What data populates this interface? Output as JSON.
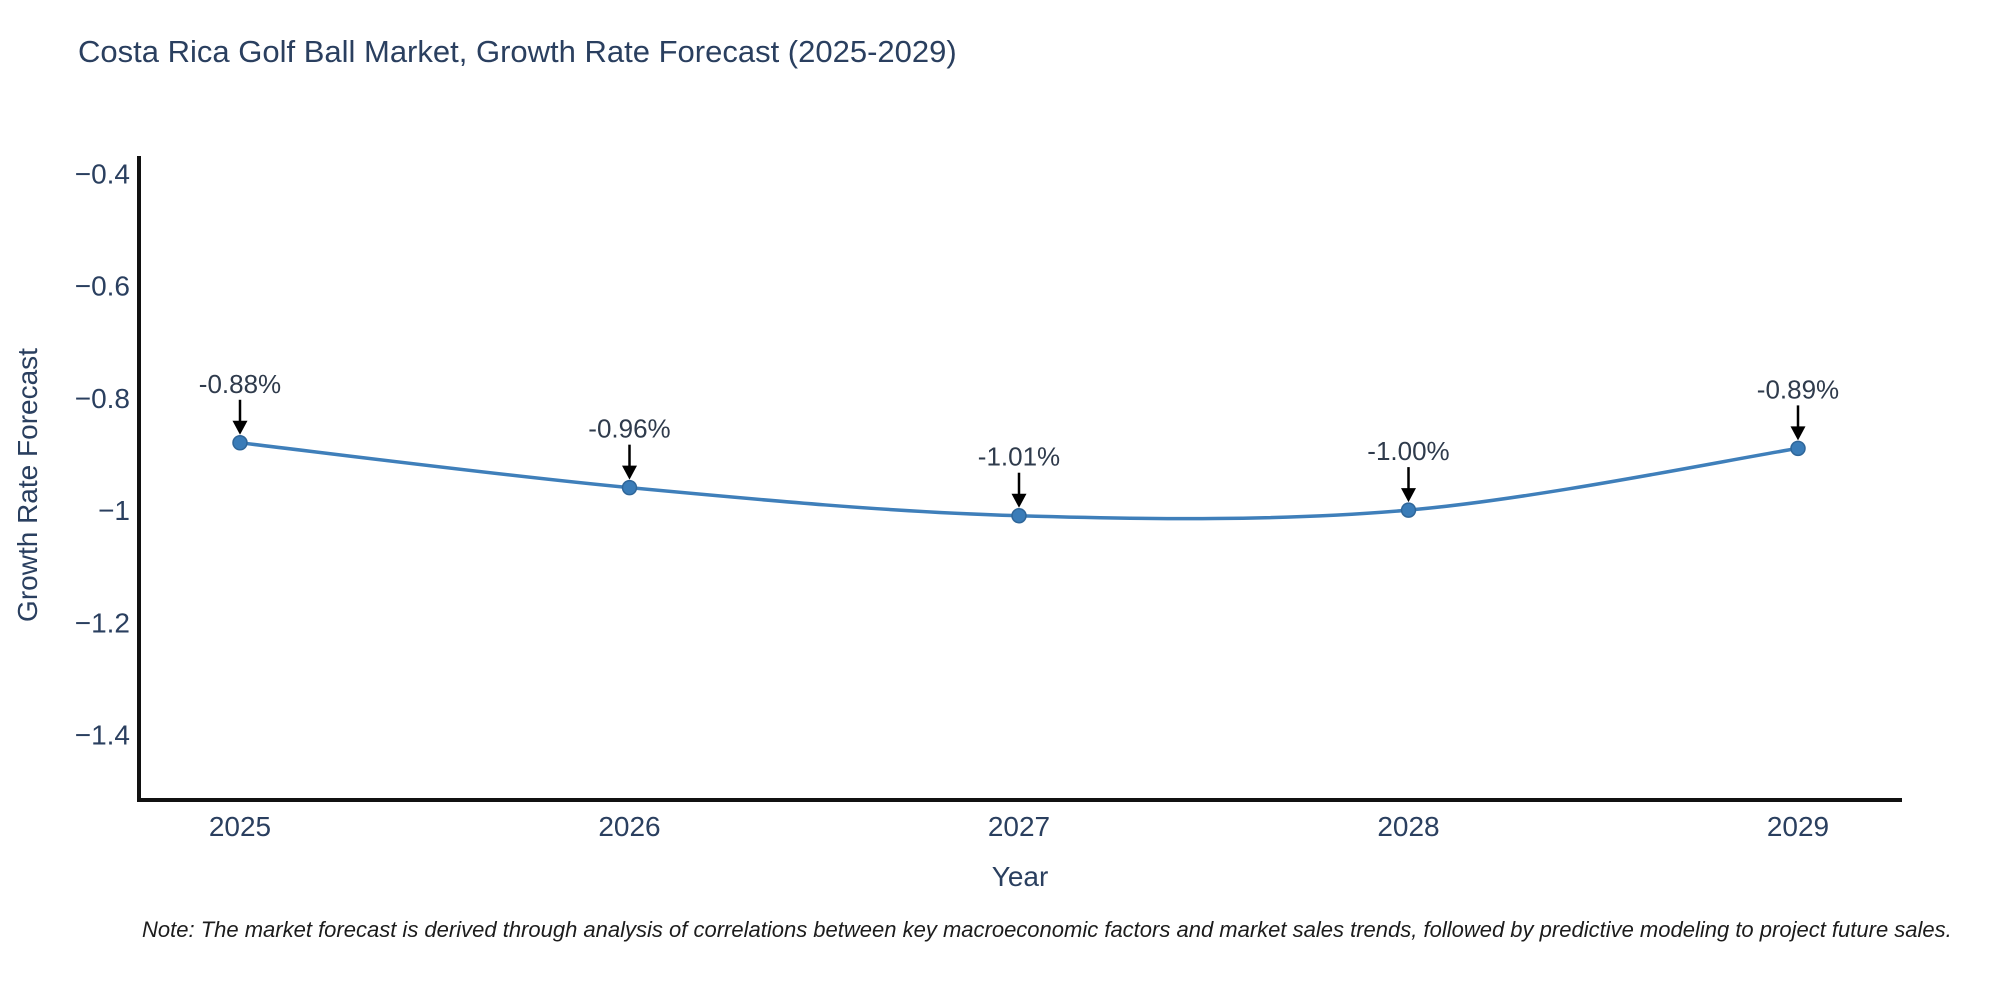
{
  "title": "Costa Rica Golf Ball Market, Growth Rate Forecast (2025-2029)",
  "note": "Note: The market forecast is derived through analysis of correlations between key macroeconomic factors and market sales trends, followed by predictive modeling to project future sales.",
  "colors": {
    "line": "#3f7fba",
    "marker_fill": "#3a7cb8",
    "marker_edge": "#2f6699",
    "axis": "#111111",
    "arrow": "#000000",
    "title_text": "#2a3f5f",
    "tick_text": "#2a3f5f",
    "background": "#ffffff"
  },
  "chart_data": {
    "type": "line",
    "line_shape": "spline",
    "title": "Costa Rica Golf Ball Market, Growth Rate Forecast (2025-2029)",
    "xlabel": "Year",
    "ylabel": "Growth Rate Forecast",
    "x": [
      2025,
      2026,
      2027,
      2028,
      2029
    ],
    "xtick_labels": [
      "2025",
      "2026",
      "2027",
      "2028",
      "2029"
    ],
    "series": [
      {
        "name": "Growth Rate Forecast",
        "values": [
          -0.88,
          -0.96,
          -1.01,
          -1.0,
          -0.89
        ]
      }
    ],
    "annotations": [
      "-0.88%",
      "-0.96%",
      "-1.01%",
      "-1.00%",
      "-0.89%"
    ],
    "yticks": [
      -0.4,
      -0.6,
      -0.8,
      -1,
      -1.2,
      -1.4
    ],
    "ytick_labels": [
      "−0.4",
      "−0.6",
      "−0.8",
      "−1",
      "−1.2",
      "−1.4"
    ],
    "ylim": [
      -1.52,
      -0.38
    ],
    "xlim": [
      2024.74,
      2029.26
    ],
    "grid": false,
    "legend": false
  }
}
